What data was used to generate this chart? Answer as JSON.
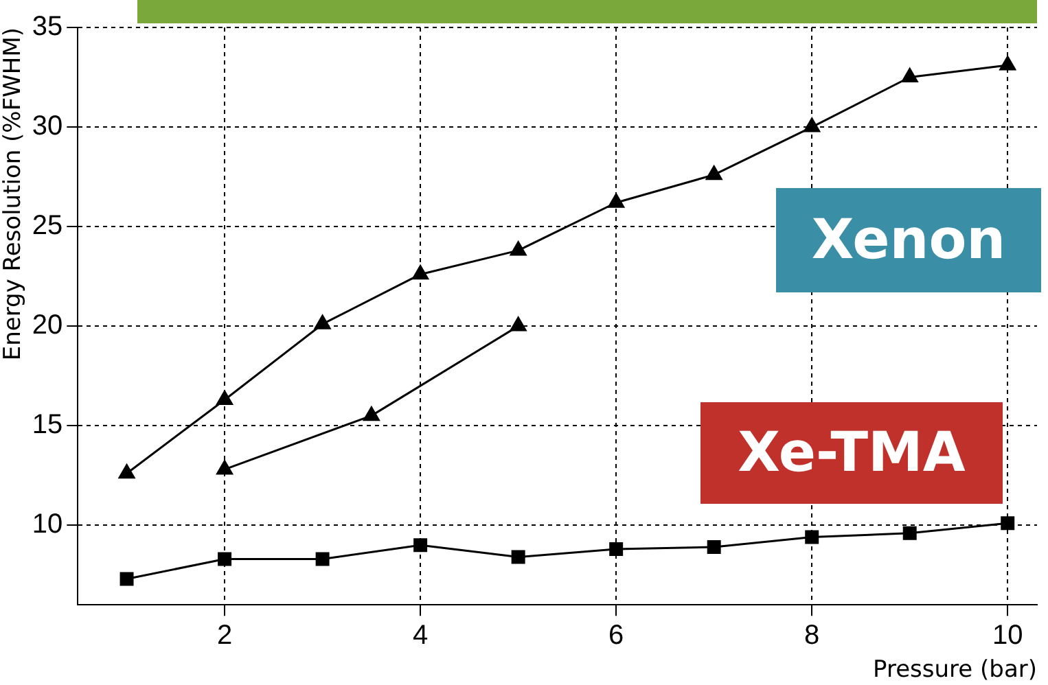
{
  "chart_data": {
    "type": "line",
    "xlabel": "Pressure (bar)",
    "ylabel": "Energy Resolution (%FWHM)",
    "xlim": [
      0.5,
      10.3
    ],
    "ylim": [
      6,
      35
    ],
    "xticks": [
      2,
      4,
      6,
      8,
      10
    ],
    "yticks": [
      10,
      15,
      20,
      25,
      30,
      35
    ],
    "grid": true,
    "legend": false,
    "annotations": [
      "Xenon",
      "Xe-TMA"
    ],
    "series": [
      {
        "color": "#000000",
        "marker": "triangle",
        "x": [
          1,
          2,
          3,
          4,
          5,
          6,
          7,
          8,
          9,
          10
        ],
        "values": [
          12.6,
          16.3,
          20.1,
          22.6,
          23.8,
          26.2,
          27.6,
          30,
          32.5,
          33.1
        ]
      },
      {
        "color": "#000000",
        "marker": "triangle",
        "x": [
          2,
          3.5,
          5
        ],
        "values": [
          12.8,
          15.5,
          20
        ]
      },
      {
        "color": "#000000",
        "marker": "square",
        "x": [
          1,
          2,
          3,
          4,
          5,
          6,
          7,
          8,
          9,
          10
        ],
        "values": [
          7.3,
          8.3,
          8.3,
          9.0,
          8.4,
          8.8,
          8.9,
          9.4,
          9.6,
          10.1
        ]
      }
    ]
  }
}
